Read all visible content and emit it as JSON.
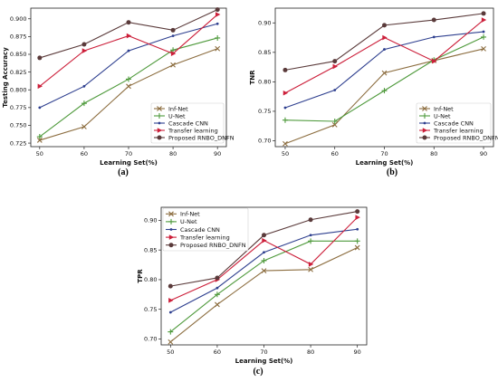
{
  "chart_data": [
    {
      "type": "line",
      "caption": "(a)",
      "xlabel": "Learning Set(%)",
      "ylabel": "Testing Accuracy",
      "x": [
        50,
        60,
        70,
        80,
        90
      ],
      "xlim": [
        48,
        92
      ],
      "ylim": [
        0.72,
        0.915
      ],
      "yticks": [
        0.725,
        0.75,
        0.775,
        0.8,
        0.825,
        0.85,
        0.875,
        0.9
      ],
      "ytick_labels": [
        "0.725",
        "0.750",
        "0.775",
        "0.800",
        "0.825",
        "0.850",
        "0.875",
        "0.900"
      ],
      "legend_position": "lower-right",
      "series": [
        {
          "name": "Inf-Net",
          "color": "#8c6d3f",
          "marker": "x",
          "values": [
            0.729,
            0.748,
            0.805,
            0.835,
            0.858
          ]
        },
        {
          "name": "U-Net",
          "color": "#4f9a3c",
          "marker": "plus",
          "values": [
            0.734,
            0.781,
            0.815,
            0.856,
            0.873
          ]
        },
        {
          "name": "Cascade CNN",
          "color": "#2e3f8f",
          "marker": "dot",
          "values": [
            0.775,
            0.805,
            0.855,
            0.876,
            0.893
          ]
        },
        {
          "name": "Transfer learning",
          "color": "#cc1f3a",
          "marker": "triangle",
          "values": [
            0.805,
            0.855,
            0.876,
            0.851,
            0.906
          ]
        },
        {
          "name": "Proposed RNBO_DNFN",
          "color": "#5a3a3a",
          "marker": "circle",
          "values": [
            0.845,
            0.864,
            0.895,
            0.884,
            0.913
          ]
        }
      ]
    },
    {
      "type": "line",
      "caption": "(b)",
      "xlabel": "Learning Set(%)",
      "ylabel": "TNR",
      "x": [
        50,
        60,
        70,
        80,
        90
      ],
      "xlim": [
        48,
        92
      ],
      "ylim": [
        0.69,
        0.925
      ],
      "yticks": [
        0.7,
        0.75,
        0.8,
        0.85,
        0.9
      ],
      "ytick_labels": [
        "0.70",
        "0.75",
        "0.80",
        "0.85",
        "0.90"
      ],
      "legend_position": "lower-right",
      "series": [
        {
          "name": "Inf-Net",
          "color": "#8c6d3f",
          "marker": "x",
          "values": [
            0.695,
            0.727,
            0.815,
            0.836,
            0.856
          ]
        },
        {
          "name": "U-Net",
          "color": "#4f9a3c",
          "marker": "plus",
          "values": [
            0.735,
            0.733,
            0.785,
            0.837,
            0.876
          ]
        },
        {
          "name": "Cascade CNN",
          "color": "#2e3f8f",
          "marker": "dot",
          "values": [
            0.756,
            0.786,
            0.855,
            0.876,
            0.885
          ]
        },
        {
          "name": "Transfer learning",
          "color": "#cc1f3a",
          "marker": "triangle",
          "values": [
            0.781,
            0.826,
            0.875,
            0.835,
            0.905
          ]
        },
        {
          "name": "Proposed RNBO_DNFN",
          "color": "#5a3a3a",
          "marker": "circle",
          "values": [
            0.82,
            0.835,
            0.896,
            0.905,
            0.916
          ]
        }
      ]
    },
    {
      "type": "line",
      "caption": "(c)",
      "xlabel": "Learning Set(%)",
      "ylabel": "TPR",
      "x": [
        50,
        60,
        70,
        80,
        90
      ],
      "xlim": [
        48,
        92
      ],
      "ylim": [
        0.69,
        0.922
      ],
      "yticks": [
        0.7,
        0.75,
        0.8,
        0.85,
        0.9
      ],
      "ytick_labels": [
        "0.70",
        "0.75",
        "0.80",
        "0.85",
        "0.90"
      ],
      "legend_position": "upper-left",
      "series": [
        {
          "name": "Inf-Net",
          "color": "#8c6d3f",
          "marker": "x",
          "values": [
            0.695,
            0.758,
            0.815,
            0.817,
            0.854
          ]
        },
        {
          "name": "U-Net",
          "color": "#4f9a3c",
          "marker": "plus",
          "values": [
            0.712,
            0.775,
            0.832,
            0.865,
            0.865
          ]
        },
        {
          "name": "Cascade CNN",
          "color": "#2e3f8f",
          "marker": "dot",
          "values": [
            0.745,
            0.786,
            0.846,
            0.875,
            0.885
          ]
        },
        {
          "name": "Transfer learning",
          "color": "#cc1f3a",
          "marker": "triangle",
          "values": [
            0.765,
            0.8,
            0.866,
            0.826,
            0.905
          ]
        },
        {
          "name": "Proposed RNBO_DNFN",
          "color": "#5a3a3a",
          "marker": "circle",
          "values": [
            0.789,
            0.803,
            0.875,
            0.901,
            0.915
          ]
        }
      ]
    }
  ]
}
